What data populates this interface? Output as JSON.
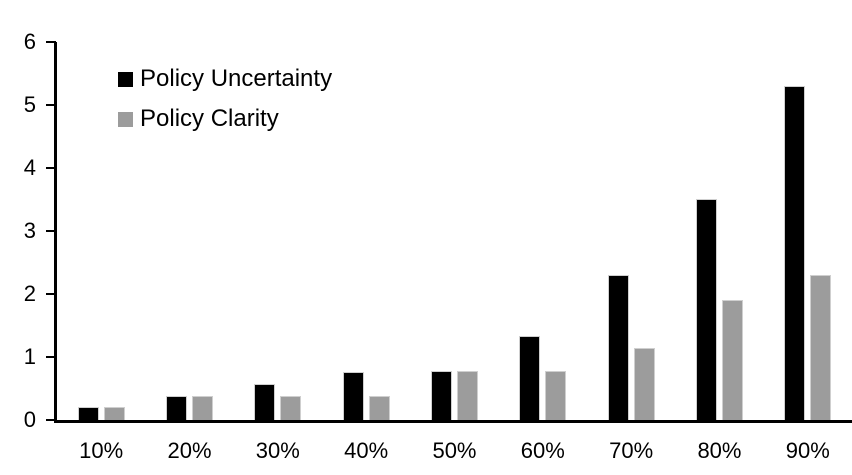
{
  "chart_data": {
    "type": "bar",
    "title": "",
    "xlabel": "",
    "ylabel": "",
    "categories": [
      "10%",
      "20%",
      "30%",
      "40%",
      "50%",
      "60%",
      "70%",
      "80%",
      "90%"
    ],
    "series": [
      {
        "name": "Policy Uncertainty",
        "color": "#000000",
        "values": [
          0.2,
          0.38,
          0.57,
          0.76,
          0.78,
          1.33,
          2.3,
          3.5,
          5.3
        ]
      },
      {
        "name": "Policy Clarity",
        "color": "#9c9c9c",
        "values": [
          0.2,
          0.38,
          0.38,
          0.38,
          0.77,
          0.77,
          1.14,
          1.9,
          2.3
        ]
      }
    ],
    "ylim": [
      0,
      6
    ],
    "yticks": [
      0,
      1,
      2,
      3,
      4,
      5,
      6
    ],
    "grid": false,
    "legend_position": "top-left",
    "axis_color": "#000000",
    "bar_outline_color": "#cfcfcf"
  }
}
